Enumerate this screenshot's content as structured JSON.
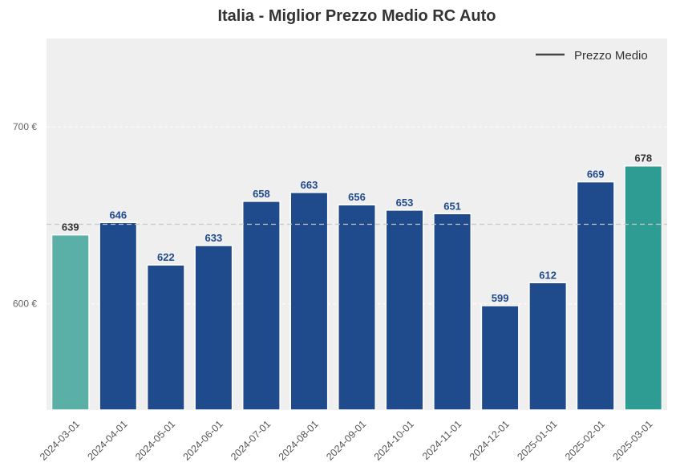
{
  "chart_data": {
    "type": "bar",
    "title": "Italia - Miglior Prezzo Medio RC Auto",
    "categories": [
      "2024-03-01",
      "2024-04-01",
      "2024-05-01",
      "2024-06-01",
      "2024-07-01",
      "2024-08-01",
      "2024-09-01",
      "2024-10-01",
      "2024-11-01",
      "2024-12-01",
      "2025-01-01",
      "2025-02-01",
      "2025-03-01"
    ],
    "values": [
      639,
      646,
      622,
      633,
      658,
      663,
      656,
      653,
      651,
      599,
      612,
      669,
      678
    ],
    "data_labels": [
      "639",
      "646",
      "622",
      "633",
      "658",
      "663",
      "656",
      "653",
      "651",
      "599",
      "612",
      "669",
      "678"
    ],
    "ylim": [
      540,
      750
    ],
    "yticks": [
      600,
      700
    ],
    "ytick_labels": [
      "600 €",
      "700 €"
    ],
    "reference_line": {
      "label": "Prezzo Medio",
      "value": 645
    },
    "legend": {
      "position": "top-right",
      "entries": [
        "Prezzo Medio"
      ]
    },
    "grid": true,
    "colors": {
      "bar_default": "#1f4a8c",
      "bar_first": "#5aafa6",
      "bar_last": "#2f9c94",
      "label_default": "#1f4a8c",
      "label_highlight": "#333333",
      "plot_background": "#efefef",
      "reference_line": "#c8c8c8",
      "legend_line": "#444444"
    }
  }
}
